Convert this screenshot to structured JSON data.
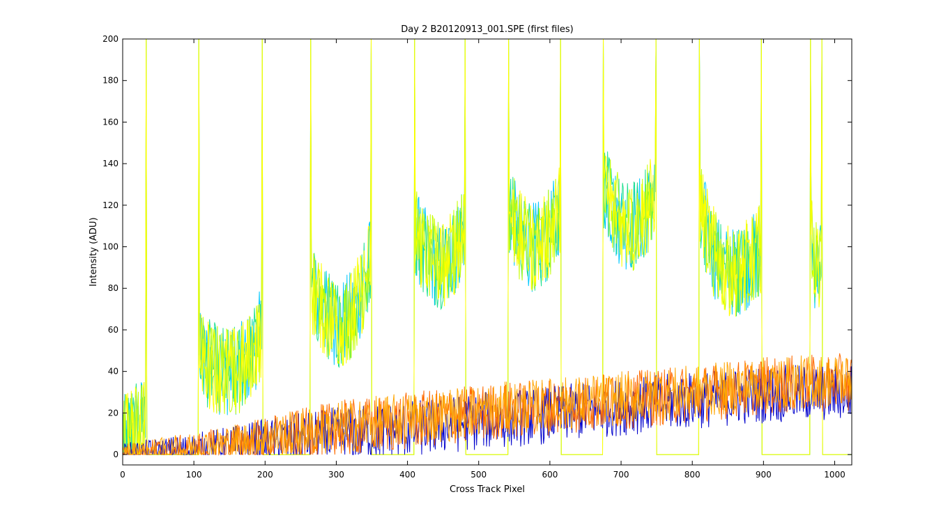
{
  "chart_data": {
    "type": "line",
    "title": "Day 2  B20120913_001.SPE (first files)",
    "xlabel": "Cross Track Pixel",
    "ylabel": "Intensity (ADU)",
    "xlim": [
      0,
      1024
    ],
    "ylim": [
      -5,
      200
    ],
    "xticks": [
      0,
      100,
      200,
      300,
      400,
      500,
      600,
      700,
      800,
      900,
      1000
    ],
    "yticks": [
      0,
      20,
      40,
      60,
      80,
      100,
      120,
      140,
      160,
      180,
      200
    ],
    "grid": false,
    "legend": "none",
    "series": [
      {
        "color": "#0000cc",
        "kind": "background noise",
        "envelope_x": [
          0,
          100,
          200,
          300,
          400,
          500,
          600,
          700,
          800,
          900,
          1024
        ],
        "envelope_mean": [
          0,
          2,
          6,
          9,
          12,
          16,
          19,
          23,
          26,
          29,
          30
        ],
        "noise_amplitude": 14
      },
      {
        "color": "#ff6a00",
        "kind": "background noise",
        "envelope_x": [
          0,
          100,
          200,
          300,
          400,
          500,
          600,
          700,
          800,
          900,
          1024
        ],
        "envelope_mean": [
          0,
          2,
          7,
          12,
          16,
          20,
          23,
          26,
          29,
          33,
          35
        ],
        "noise_amplitude": 14
      },
      {
        "color": "#ffa500",
        "kind": "background noise",
        "envelope_x": [
          0,
          100,
          200,
          300,
          400,
          500,
          600,
          700,
          800,
          900,
          1024
        ],
        "envelope_mean": [
          0,
          3,
          8,
          13,
          17,
          21,
          24,
          27,
          30,
          34,
          36
        ],
        "noise_amplitude": 13
      },
      {
        "color": "#00c8ff",
        "kind": "fiber bands"
      },
      {
        "color": "#20e090",
        "kind": "fiber bands"
      },
      {
        "color": "#c8ff00",
        "kind": "fiber bands"
      },
      {
        "color": "#ffff00",
        "kind": "fiber bands"
      }
    ],
    "bands": [
      {
        "x0": 0,
        "x1": 33,
        "mean_left": 5,
        "mean_right": 25,
        "mean_mid": 12
      },
      {
        "x0": 107,
        "x1": 196,
        "mean_left": 48,
        "mean_right": 60,
        "mean_mid": 40
      },
      {
        "x0": 264,
        "x1": 349,
        "mean_left": 80,
        "mean_right": 96,
        "mean_mid": 64
      },
      {
        "x0": 410,
        "x1": 481,
        "mean_left": 108,
        "mean_right": 110,
        "mean_mid": 92
      },
      {
        "x0": 542,
        "x1": 615,
        "mean_left": 118,
        "mean_right": 120,
        "mean_mid": 100
      },
      {
        "x0": 675,
        "x1": 749,
        "mean_left": 130,
        "mean_right": 128,
        "mean_mid": 110
      },
      {
        "x0": 810,
        "x1": 897,
        "mean_left": 122,
        "mean_right": 100,
        "mean_mid": 88
      },
      {
        "x0": 966,
        "x1": 982,
        "mean_left": 110,
        "mean_right": 100,
        "mean_mid": 90
      }
    ],
    "spikes_x": [
      33,
      107,
      196,
      264,
      349,
      410,
      481,
      542,
      615,
      675,
      749,
      810,
      897,
      966,
      982
    ]
  }
}
